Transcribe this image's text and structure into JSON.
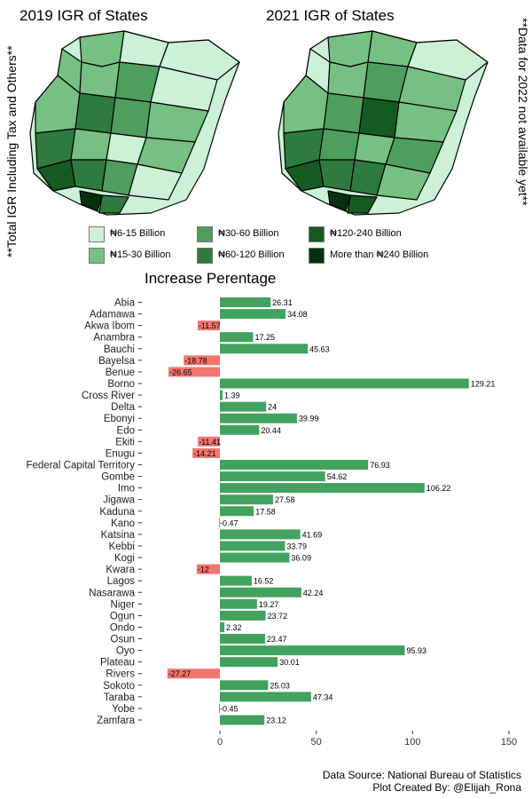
{
  "maps": {
    "left_title": "2019 IGR of States",
    "right_title": "2021 IGR of States"
  },
  "side_notes": {
    "left": "**Total IGR Including Tax and Others**",
    "right": "**Data for 2022 not available yet**"
  },
  "legend": [
    {
      "label": "₦6-15  Billion",
      "color": "#ccf1d6"
    },
    {
      "label": "₦15-30 Billion",
      "color": "#76c083"
    },
    {
      "label": "₦30-60 Billion",
      "color": "#4e9f5e"
    },
    {
      "label": "₦60-120 Billion",
      "color": "#2f7a3e"
    },
    {
      "label": "₦120-240 Billion",
      "color": "#145a22"
    },
    {
      "label": "More than ₦240 Billion",
      "color": "#07300f"
    }
  ],
  "footer": {
    "source": "Data Source: National Bureau of Statistics",
    "credit": "Plot Created By: @Elijah_Rona"
  },
  "chart_data": {
    "type": "bar",
    "orientation": "horizontal",
    "title": "Increase Perentage",
    "xlim": [
      -30,
      150
    ],
    "xticks": [
      0,
      50,
      100,
      150
    ],
    "positive_color": "#43a25e",
    "negative_color": "#f2766e",
    "categories": [
      "Abia",
      "Adamawa",
      "Akwa Ibom",
      "Anambra",
      "Bauchi",
      "Bayelsa",
      "Benue",
      "Borno",
      "Cross River",
      "Delta",
      "Ebonyi",
      "Edo",
      "Ekiti",
      "Enugu",
      "Federal Capital Territory",
      "Gombe",
      "Imo",
      "Jigawa",
      "Kaduna",
      "Kano",
      "Katsina",
      "Kebbi",
      "Kogi",
      "Kwara",
      "Lagos",
      "Nasarawa",
      "Niger",
      "Ogun",
      "Ondo",
      "Osun",
      "Oyo",
      "Plateau",
      "Rivers",
      "Sokoto",
      "Taraba",
      "Yobe",
      "Zamfara"
    ],
    "values": [
      26.31,
      34.08,
      -11.57,
      17.25,
      45.63,
      -18.78,
      -26.65,
      129.21,
      1.39,
      24,
      39.99,
      20.44,
      -11.41,
      -14.21,
      76.93,
      54.62,
      106.22,
      27.58,
      17.58,
      -0.47,
      41.69,
      33.79,
      36.09,
      -12,
      16.52,
      42.24,
      19.27,
      23.72,
      2.32,
      23.47,
      95.93,
      30.01,
      -27.27,
      25.03,
      47.34,
      -0.45,
      23.12
    ],
    "labels": [
      "26.31",
      "34.08",
      "-11.57",
      "17.25",
      "45.63",
      "-18.78",
      "-26.65",
      "129.21",
      "1.39",
      "24",
      "39.99",
      "20.44",
      "-11.41",
      "-14.21",
      "76.93",
      "54.62",
      "106.22",
      "27.58",
      "17.58",
      "-0.47",
      "41.69",
      "33.79",
      "36.09",
      "-12",
      "16.52",
      "42.24",
      "19.27",
      "23.72",
      "2.32",
      "23.47",
      "95.93",
      "30.01",
      "-27.27",
      "25.03",
      "47.34",
      "-0.45",
      "23.12"
    ]
  }
}
